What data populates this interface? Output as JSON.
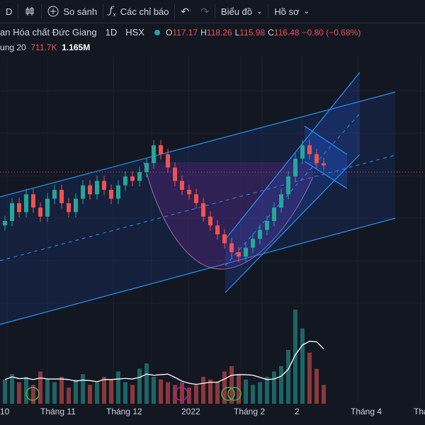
{
  "toolbar": {
    "interval_label": "D",
    "compare_label": "So sánh",
    "indicators_label": "Các chỉ báo",
    "chart_type_label": "Biểu đồ",
    "profile_label": "Hồ sơ"
  },
  "symbol": {
    "name": "an Hóa chất Đức Giang",
    "interval": "1D",
    "exchange": "HSX",
    "o_label": "O",
    "o_value": "117.17",
    "h_label": "H",
    "h_value": "118.26",
    "l_label": "L",
    "l_value": "115.98",
    "c_label": "C",
    "c_value": "116.48",
    "change": "−0.80 (−0.68%)"
  },
  "volume_legend": {
    "label": "ung 20",
    "value1": "711.7K",
    "value2": "1.165M"
  },
  "axis": {
    "labels": [
      "10",
      "Tháng 11",
      "Tháng 12",
      "2022",
      "Tháng 2",
      "2",
      "Tháng 4",
      "Thá"
    ]
  },
  "colors": {
    "background": "#131722",
    "up": "#26a69a",
    "down": "#ef5350",
    "channel": "#2962ff",
    "cup": "#9c27b0"
  },
  "icons": [
    "candles-icon",
    "plus-circle-icon",
    "fx-icon",
    "undo-icon",
    "redo-icon",
    "chevron-down-icon"
  ],
  "chart_data": {
    "type": "candlestick",
    "series": [
      {
        "name": "price",
        "values": [
          104,
          108,
          106,
          110,
          107,
          105,
          109,
          111,
          108,
          106,
          109,
          112,
          110,
          113,
          111,
          109,
          112,
          114,
          113,
          115,
          117,
          121,
          119,
          116,
          113,
          111,
          110,
          108,
          105,
          103,
          101,
          99,
          97,
          96,
          98,
          100,
          102,
          104,
          107,
          110,
          114,
          118,
          121,
          119,
          117,
          116.48
        ]
      },
      {
        "name": "volume",
        "values": [
          0.9,
          1.1,
          0.8,
          1.0,
          0.7,
          1.2,
          0.9,
          0.8,
          1.0,
          0.6,
          0.9,
          1.1,
          0.7,
          0.8,
          1.0,
          0.9,
          1.2,
          0.8,
          0.7,
          1.3,
          1.5,
          1.0,
          0.9,
          0.8,
          0.7,
          0.8,
          0.6,
          0.7,
          1.0,
          0.9,
          0.8,
          1.2,
          1.4,
          1.1,
          0.9,
          0.7,
          0.8,
          1.0,
          1.2,
          1.4,
          2.0,
          3.5,
          2.8,
          1.9,
          1.3,
          0.7
        ]
      }
    ]
  }
}
